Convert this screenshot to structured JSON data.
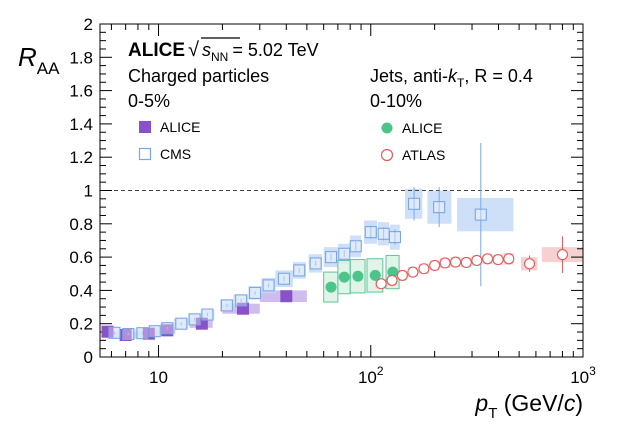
{
  "chart_data": {
    "type": "scatter",
    "title": "ALICE",
    "energy": "= 5.02 TeV",
    "energy_symbol": "s",
    "energy_sub": "NN",
    "ylabel": "R",
    "ylabel_sub": "AA",
    "xlabel_p": "p",
    "xlabel_sub": "T",
    "xlabel_unit_open": " (GeV/",
    "xlabel_unit_c": "c",
    "xlabel_unit_close": ")",
    "xscale": "log",
    "xlim": [
      5.3,
      1000
    ],
    "ylim": [
      0,
      2
    ],
    "y_ticks": [
      "0",
      "0.2",
      "0.4",
      "0.6",
      "0.8",
      "1",
      "1.2",
      "1.4",
      "1.6",
      "1.8",
      "2"
    ],
    "x_ticks": [
      {
        "value": 10,
        "base": "10",
        "exp": ""
      },
      {
        "value": 100,
        "base": "10",
        "exp": "2"
      },
      {
        "value": 1000,
        "base": "10",
        "exp": "3"
      }
    ],
    "reference_line": 1,
    "group_left": {
      "line1": "Charged particles",
      "line2": "0-5%"
    },
    "group_right": {
      "line1_pre": "Jets, anti-",
      "k": "k",
      "k_sub": "T",
      "line1_post": ", R = 0.4",
      "line2": "0-10%"
    },
    "series": [
      {
        "name": "ALICE",
        "group": "charged",
        "marker": "filled-square",
        "color": "#8a52c8",
        "band": "#c8b2ec",
        "points": [
          {
            "x": 5.75,
            "y": 0.152,
            "bx0": 5.5,
            "bx1": 6.0,
            "bh": 0.02
          },
          {
            "x": 7.0,
            "y": 0.132,
            "bx0": 6.0,
            "bx1": 8.0,
            "bh": 0.02
          },
          {
            "x": 9.0,
            "y": 0.14,
            "bx0": 8.0,
            "bx1": 10.0,
            "bh": 0.02
          },
          {
            "x": 11.0,
            "y": 0.16,
            "bx0": 10.0,
            "bx1": 12.0,
            "bh": 0.02
          },
          {
            "x": 16.0,
            "y": 0.2,
            "bx0": 14.0,
            "bx1": 18.0,
            "bh": 0.025
          },
          {
            "x": 25.0,
            "y": 0.29,
            "bx0": 20.0,
            "bx1": 30.0,
            "bh": 0.03
          },
          {
            "x": 40.0,
            "y": 0.365,
            "bx0": 30.0,
            "bx1": 50.0,
            "bh": 0.035
          }
        ]
      },
      {
        "name": "CMS",
        "group": "charged",
        "marker": "open-square",
        "color": "#7aa6e6",
        "band": "#c6dbf7",
        "points": [
          {
            "x": 6.2,
            "y": 0.145,
            "bx0": 5.8,
            "bx1": 6.6,
            "bh": 0.03,
            "err": 0.008
          },
          {
            "x": 7.2,
            "y": 0.138,
            "bx0": 6.6,
            "bx1": 7.8,
            "bh": 0.03,
            "err": 0.008
          },
          {
            "x": 8.4,
            "y": 0.143,
            "bx0": 7.8,
            "bx1": 9.0,
            "bh": 0.03,
            "err": 0.008
          },
          {
            "x": 9.6,
            "y": 0.155,
            "bx0": 9.0,
            "bx1": 10.2,
            "bh": 0.03,
            "err": 0.008
          },
          {
            "x": 11.0,
            "y": 0.173,
            "bx0": 10.2,
            "bx1": 11.8,
            "bh": 0.03,
            "err": 0.008
          },
          {
            "x": 12.8,
            "y": 0.2,
            "bx0": 11.8,
            "bx1": 13.8,
            "bh": 0.03,
            "err": 0.01
          },
          {
            "x": 14.8,
            "y": 0.226,
            "bx0": 13.8,
            "bx1": 15.8,
            "bh": 0.03,
            "err": 0.01
          },
          {
            "x": 17.0,
            "y": 0.255,
            "bx0": 15.8,
            "bx1": 18.3,
            "bh": 0.03,
            "err": 0.01
          },
          {
            "x": 21.0,
            "y": 0.31,
            "bx0": 19.5,
            "bx1": 22.5,
            "bh": 0.035,
            "err": 0.01
          },
          {
            "x": 24.5,
            "y": 0.34,
            "bx0": 22.5,
            "bx1": 26.5,
            "bh": 0.035,
            "err": 0.01
          },
          {
            "x": 28.5,
            "y": 0.385,
            "bx0": 26.5,
            "bx1": 30.5,
            "bh": 0.04,
            "err": 0.012
          },
          {
            "x": 33.0,
            "y": 0.43,
            "bx0": 30.5,
            "bx1": 35.5,
            "bh": 0.045,
            "err": 0.012
          },
          {
            "x": 39.0,
            "y": 0.47,
            "bx0": 35.5,
            "bx1": 43.0,
            "bh": 0.05,
            "err": 0.015
          },
          {
            "x": 46.0,
            "y": 0.52,
            "bx0": 43.0,
            "bx1": 49.5,
            "bh": 0.05,
            "err": 0.015
          },
          {
            "x": 55.0,
            "y": 0.562,
            "bx0": 51.0,
            "bx1": 59.0,
            "bh": 0.055,
            "err": 0.015
          },
          {
            "x": 65.0,
            "y": 0.6,
            "bx0": 60.0,
            "bx1": 70.0,
            "bh": 0.06,
            "err": 0.02
          },
          {
            "x": 75.0,
            "y": 0.62,
            "bx0": 70.0,
            "bx1": 80.0,
            "bh": 0.06,
            "err": 0.02
          },
          {
            "x": 85.0,
            "y": 0.665,
            "bx0": 80.0,
            "bx1": 90.0,
            "bh": 0.065,
            "err": 0.025
          },
          {
            "x": 100.0,
            "y": 0.75,
            "bx0": 93.0,
            "bx1": 107.0,
            "bh": 0.07,
            "err": 0.04
          },
          {
            "x": 115.0,
            "y": 0.74,
            "bx0": 108.0,
            "bx1": 122.0,
            "bh": 0.07,
            "err": 0.04
          },
          {
            "x": 130.0,
            "y": 0.72,
            "bx0": 123.0,
            "bx1": 137.0,
            "bh": 0.075,
            "err": 0.045
          },
          {
            "x": 160.0,
            "y": 0.92,
            "bx0": 145.0,
            "bx1": 175.0,
            "bh": 0.09,
            "err": 0.1
          },
          {
            "x": 210.0,
            "y": 0.9,
            "bx0": 185.0,
            "bx1": 240.0,
            "bh": 0.1,
            "err": 0.12
          },
          {
            "x": 330.0,
            "y": 0.855,
            "bx0": 255.0,
            "bx1": 470.0,
            "bh": 0.1,
            "err": 0.43
          }
        ]
      },
      {
        "name": "ALICE",
        "group": "jets",
        "marker": "filled-circle",
        "color": "#4dc48a",
        "band": "#d8f1e3",
        "box": "#5cc797",
        "points": [
          {
            "x": 65.0,
            "y": 0.42,
            "bx0": 60.0,
            "bx1": 70.0,
            "bh": 0.09
          },
          {
            "x": 75.0,
            "y": 0.48,
            "bx0": 70.0,
            "bx1": 80.0,
            "bh": 0.1
          },
          {
            "x": 87.0,
            "y": 0.485,
            "bx0": 80.0,
            "bx1": 94.0,
            "bh": 0.1
          },
          {
            "x": 105.0,
            "y": 0.49,
            "bx0": 96.0,
            "bx1": 114.0,
            "bh": 0.1
          },
          {
            "x": 127.0,
            "y": 0.51,
            "bx0": 118.0,
            "bx1": 136.0,
            "bh": 0.1
          }
        ]
      },
      {
        "name": "ATLAS",
        "group": "jets",
        "marker": "open-circle",
        "color": "#e35a5a",
        "band": "#f5c9c9",
        "points": [
          {
            "x": 112.0,
            "y": 0.44,
            "bx0": 105.0,
            "bx1": 119.0,
            "bh": 0.03,
            "err": 0.02
          },
          {
            "x": 126.0,
            "y": 0.46,
            "bx0": 119.0,
            "bx1": 133.0,
            "bh": 0.03,
            "err": 0.02
          },
          {
            "x": 141.0,
            "y": 0.49,
            "bx0": 134.0,
            "bx1": 148.0,
            "bh": 0.03,
            "err": 0.02
          },
          {
            "x": 158.0,
            "y": 0.51,
            "bx0": 150.0,
            "bx1": 166.0,
            "bh": 0.03,
            "err": 0.02
          },
          {
            "x": 178.0,
            "y": 0.53,
            "bx0": 168.0,
            "bx1": 188.0,
            "bh": 0.03,
            "err": 0.02
          },
          {
            "x": 200.0,
            "y": 0.55,
            "bx0": 190.0,
            "bx1": 210.0,
            "bh": 0.03,
            "err": 0.02
          },
          {
            "x": 224.0,
            "y": 0.565,
            "bx0": 212.0,
            "bx1": 236.0,
            "bh": 0.03,
            "err": 0.02
          },
          {
            "x": 251.0,
            "y": 0.57,
            "bx0": 238.0,
            "bx1": 264.0,
            "bh": 0.03,
            "err": 0.02
          },
          {
            "x": 282.0,
            "y": 0.568,
            "bx0": 266.0,
            "bx1": 298.0,
            "bh": 0.03,
            "err": 0.02
          },
          {
            "x": 316.0,
            "y": 0.58,
            "bx0": 300.0,
            "bx1": 332.0,
            "bh": 0.03,
            "err": 0.02
          },
          {
            "x": 355.0,
            "y": 0.59,
            "bx0": 336.0,
            "bx1": 374.0,
            "bh": 0.03,
            "err": 0.02
          },
          {
            "x": 398.0,
            "y": 0.585,
            "bx0": 378.0,
            "bx1": 418.0,
            "bh": 0.03,
            "err": 0.025
          },
          {
            "x": 447.0,
            "y": 0.59,
            "bx0": 423.0,
            "bx1": 471.0,
            "bh": 0.035,
            "err": 0.03
          },
          {
            "x": 560.0,
            "y": 0.56,
            "bx0": 510.0,
            "bx1": 610.0,
            "bh": 0.04,
            "err": 0.05
          },
          {
            "x": 800.0,
            "y": 0.615,
            "bx0": 640.0,
            "bx1": 1000.0,
            "bh": 0.045,
            "err": 0.11
          }
        ]
      }
    ]
  }
}
